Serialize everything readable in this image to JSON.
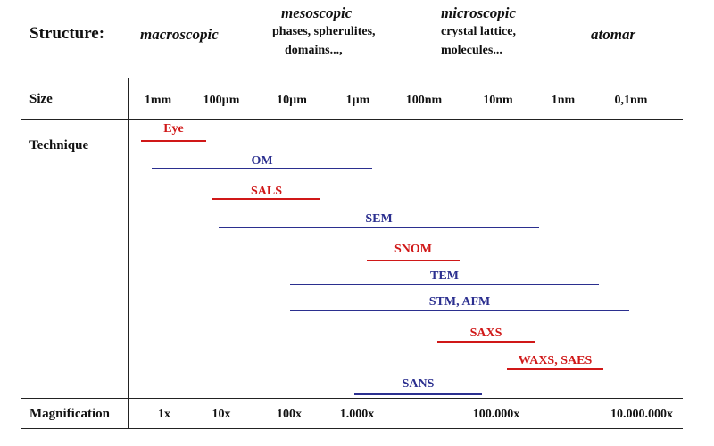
{
  "structure": {
    "label": "Structure:",
    "scales": [
      {
        "head": "macroscopic",
        "lines": []
      },
      {
        "head": "mesoscopic",
        "lines": [
          "phases, spherulites,",
          "domains...,"
        ]
      },
      {
        "head": "microscopic",
        "lines": [
          "crystal lattice,",
          "molecules..."
        ]
      },
      {
        "head": "atomar",
        "lines": []
      }
    ]
  },
  "size": {
    "label": "Size",
    "ticks": [
      "1mm",
      "100µm",
      "10µm",
      "1µm",
      "100nm",
      "10nm",
      "1nm",
      "0,1nm"
    ]
  },
  "technique": {
    "label": "Technique",
    "items": [
      {
        "name": "Eye",
        "color": "#d01818"
      },
      {
        "name": "OM",
        "color": "#2b2f8f"
      },
      {
        "name": "SALS",
        "color": "#d01818"
      },
      {
        "name": "SEM",
        "color": "#2b2f8f"
      },
      {
        "name": "SNOM",
        "color": "#d01818"
      },
      {
        "name": "TEM",
        "color": "#2b2f8f"
      },
      {
        "name": "STM, AFM",
        "color": "#2b2f8f"
      },
      {
        "name": "SAXS",
        "color": "#d01818"
      },
      {
        "name": "WAXS, SAES",
        "color": "#d01818"
      },
      {
        "name": "SANS",
        "color": "#2b2f8f"
      }
    ]
  },
  "magnification": {
    "label": "Magnification",
    "ticks": [
      "1x",
      "10x",
      "100x",
      "1.000x",
      "100.000x",
      "10.000.000x"
    ]
  }
}
